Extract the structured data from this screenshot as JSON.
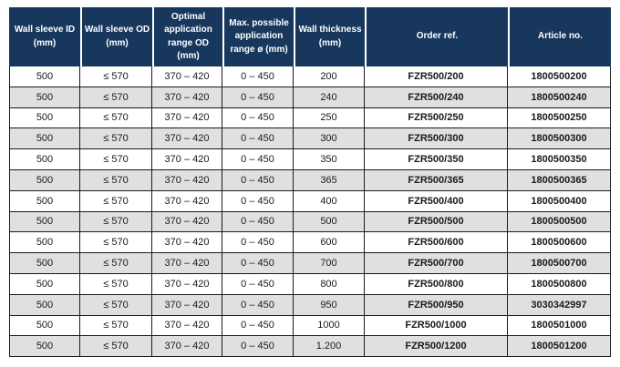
{
  "colors": {
    "header_bg": "#17375D",
    "header_text": "#FFFFFF",
    "row_bg": "#FFFFFF",
    "row_alt_bg": "#E0E0E0",
    "border": "#1A1A1A",
    "text": "#1A1A1A",
    "header_sep": "#FFFFFF"
  },
  "table": {
    "columns": [
      "Wall sleeve ID\n(mm)",
      "Wall sleeve OD\n(mm)",
      "Optimal\napplication\nrange OD\n(mm)",
      "Max. possible\napplication\nrange ø (mm)",
      "Wall thickness\n(mm)",
      "Order ref.",
      "Article no."
    ],
    "rows": [
      [
        "500",
        "≤ 570",
        "370 – 420",
        "0 – 450",
        "200",
        "FZR500/200",
        "1800500200"
      ],
      [
        "500",
        "≤ 570",
        "370 – 420",
        "0 – 450",
        "240",
        "FZR500/240",
        "1800500240"
      ],
      [
        "500",
        "≤ 570",
        "370 – 420",
        "0 – 450",
        "250",
        "FZR500/250",
        "1800500250"
      ],
      [
        "500",
        "≤ 570",
        "370 – 420",
        "0 – 450",
        "300",
        "FZR500/300",
        "1800500300"
      ],
      [
        "500",
        "≤ 570",
        "370 – 420",
        "0 – 450",
        "350",
        "FZR500/350",
        "1800500350"
      ],
      [
        "500",
        "≤ 570",
        "370 – 420",
        "0 – 450",
        "365",
        "FZR500/365",
        "1800500365"
      ],
      [
        "500",
        "≤ 570",
        "370 – 420",
        "0 – 450",
        "400",
        "FZR500/400",
        "1800500400"
      ],
      [
        "500",
        "≤ 570",
        "370 – 420",
        "0 – 450",
        "500",
        "FZR500/500",
        "1800500500"
      ],
      [
        "500",
        "≤ 570",
        "370 – 420",
        "0 – 450",
        "600",
        "FZR500/600",
        "1800500600"
      ],
      [
        "500",
        "≤ 570",
        "370 – 420",
        "0 – 450",
        "700",
        "FZR500/700",
        "1800500700"
      ],
      [
        "500",
        "≤ 570",
        "370 – 420",
        "0 – 450",
        "800",
        "FZR500/800",
        "1800500800"
      ],
      [
        "500",
        "≤ 570",
        "370 – 420",
        "0 – 450",
        "950",
        "FZR500/950",
        "3030342997"
      ],
      [
        "500",
        "≤ 570",
        "370 – 420",
        "0 – 450",
        "1000",
        "FZR500/1000",
        "1800501000"
      ],
      [
        "500",
        "≤ 570",
        "370 – 420",
        "0 – 450",
        "1.200",
        "FZR500/1200",
        "1800501200"
      ]
    ]
  }
}
